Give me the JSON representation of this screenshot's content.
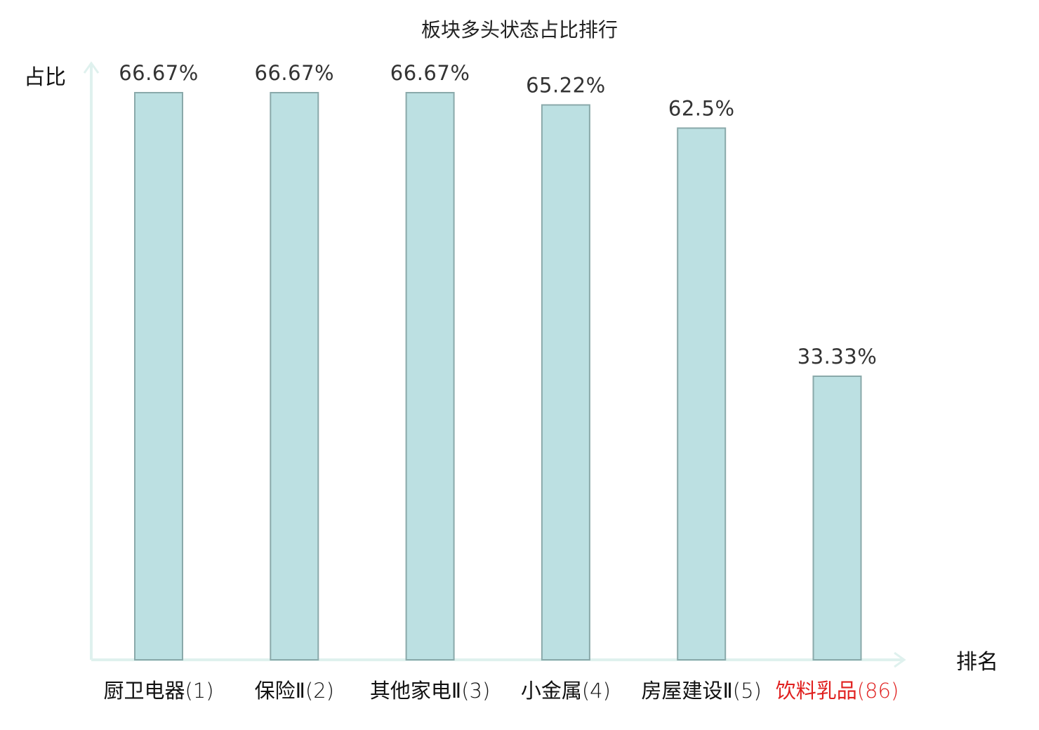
{
  "chart_data": {
    "type": "bar",
    "title": "板块多头状态占比排行",
    "xlabel": "排名",
    "ylabel": "占比",
    "ylim": [
      0,
      70
    ],
    "grid": false,
    "categories": [
      {
        "name": "厨卫电器",
        "rank": "(1)",
        "highlight": false
      },
      {
        "name": "保险Ⅱ",
        "rank": "(2)",
        "highlight": false
      },
      {
        "name": "其他家电Ⅱ",
        "rank": "(3)",
        "highlight": false
      },
      {
        "name": "小金属",
        "rank": "(4)",
        "highlight": false
      },
      {
        "name": "房屋建设Ⅱ",
        "rank": "(5)",
        "highlight": false
      },
      {
        "name": "饮料乳品",
        "rank": "(86)",
        "highlight": true
      }
    ],
    "values": [
      66.67,
      66.67,
      66.67,
      65.22,
      62.5,
      33.33
    ],
    "value_labels": [
      "66.67%",
      "66.67%",
      "66.67%",
      "65.22%",
      "62.5%",
      "33.33%"
    ]
  },
  "colors": {
    "bar_fill": "#bce0e2",
    "bar_stroke": "#8aa9aa",
    "axis": "#dff1ee",
    "text": "#111111",
    "value_text": "#333333",
    "highlight": "#e0201f"
  }
}
